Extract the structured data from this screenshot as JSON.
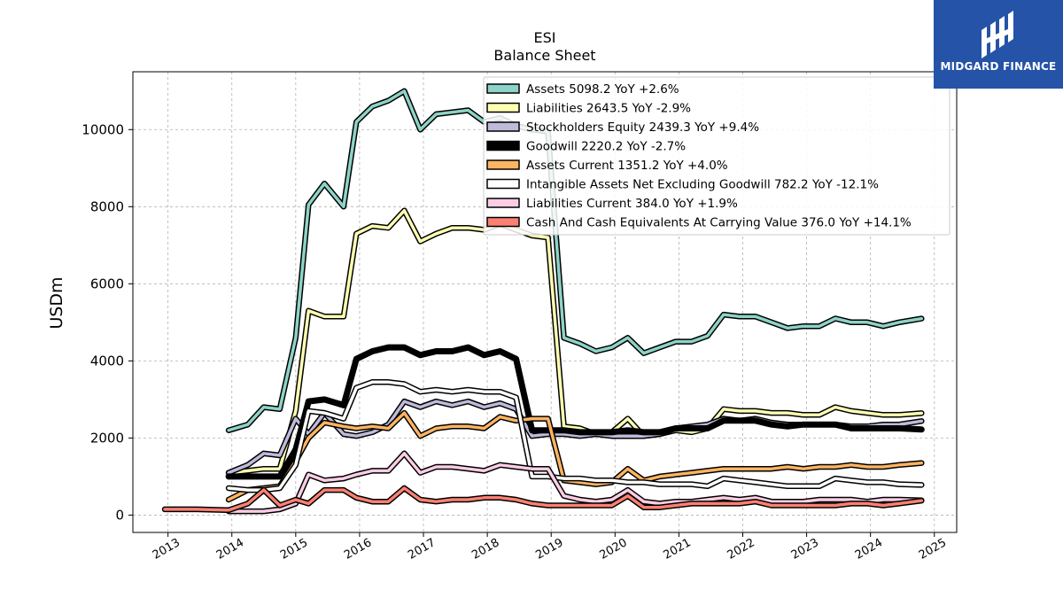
{
  "logo": {
    "text": "MIDGARD FINANCE",
    "icon": "midgard-finance-logo-icon",
    "bg_color": "#2453a8"
  },
  "chart_data": {
    "type": "line",
    "title": "ESI",
    "subtitle": "Balance  Sheet",
    "xlabel": "",
    "ylabel": "USDm",
    "xlim": [
      2012.45,
      2025.35
    ],
    "ylim": [
      -450,
      11500
    ],
    "x_ticks": [
      "2013",
      "2014",
      "2015",
      "2016",
      "2017",
      "2018",
      "2019",
      "2020",
      "2021",
      "2022",
      "2023",
      "2024",
      "2025"
    ],
    "y_ticks": [
      "0",
      "2000",
      "4000",
      "6000",
      "8000",
      "10000"
    ],
    "grid": true,
    "legend_position": "top-right",
    "series": [
      {
        "name": "Assets  5098.2 YoY +2.6%",
        "color": "#8dd3c7",
        "lw": 3.5,
        "x": [
          2013.95,
          2014.25,
          2014.5,
          2014.75,
          2015.0,
          2015.2,
          2015.45,
          2015.75,
          2015.95,
          2016.2,
          2016.45,
          2016.7,
          2016.95,
          2017.2,
          2017.45,
          2017.7,
          2017.95,
          2018.2,
          2018.45,
          2018.7,
          2018.95,
          2019.2,
          2019.45,
          2019.7,
          2019.95,
          2020.2,
          2020.45,
          2020.7,
          2020.95,
          2021.2,
          2021.45,
          2021.7,
          2021.95,
          2022.2,
          2022.45,
          2022.7,
          2022.95,
          2023.2,
          2023.45,
          2023.7,
          2023.95,
          2024.2,
          2024.45,
          2024.8
        ],
        "y": [
          2200,
          2350,
          2800,
          2750,
          4600,
          8050,
          8600,
          8000,
          10200,
          10600,
          10750,
          11000,
          10000,
          10400,
          10450,
          10500,
          10200,
          10300,
          10100,
          10000,
          9950,
          4600,
          4450,
          4250,
          4350,
          4600,
          4200,
          4350,
          4500,
          4500,
          4650,
          5200,
          5150,
          5150,
          5000,
          4850,
          4900,
          4900,
          5100,
          5000,
          5000,
          4900,
          5000,
          5098.2
        ]
      },
      {
        "name": "Liabilities  2643.5 YoY -2.9%",
        "color": "#ffffb3",
        "lw": 3.5,
        "x": [
          2013.95,
          2014.25,
          2014.5,
          2014.75,
          2015.0,
          2015.2,
          2015.45,
          2015.75,
          2015.95,
          2016.2,
          2016.45,
          2016.7,
          2016.95,
          2017.2,
          2017.45,
          2017.7,
          2017.95,
          2018.2,
          2018.45,
          2018.7,
          2018.95,
          2019.2,
          2019.45,
          2019.7,
          2019.95,
          2020.2,
          2020.45,
          2020.7,
          2020.95,
          2021.2,
          2021.45,
          2021.7,
          2021.95,
          2022.2,
          2022.45,
          2022.7,
          2022.95,
          2023.2,
          2023.45,
          2023.7,
          2023.95,
          2024.2,
          2024.45,
          2024.8
        ],
        "y": [
          1100,
          1150,
          1200,
          1200,
          2700,
          5300,
          5150,
          5150,
          7300,
          7500,
          7450,
          7900,
          7100,
          7300,
          7450,
          7450,
          7400,
          7550,
          7400,
          7250,
          7200,
          2300,
          2250,
          2100,
          2150,
          2500,
          2050,
          2100,
          2200,
          2150,
          2250,
          2750,
          2700,
          2700,
          2650,
          2650,
          2600,
          2600,
          2800,
          2700,
          2650,
          2600,
          2600,
          2643.5
        ]
      },
      {
        "name": "Stockholders Equity  2439.3 YoY +9.4%",
        "color": "#bebada",
        "lw": 3.5,
        "x": [
          2013.95,
          2014.25,
          2014.5,
          2014.75,
          2015.0,
          2015.2,
          2015.45,
          2015.75,
          2015.95,
          2016.2,
          2016.45,
          2016.7,
          2016.95,
          2017.2,
          2017.45,
          2017.7,
          2017.95,
          2018.2,
          2018.45,
          2018.7,
          2018.95,
          2019.2,
          2019.45,
          2019.7,
          2019.95,
          2020.2,
          2020.45,
          2020.7,
          2020.95,
          2021.2,
          2021.45,
          2021.7,
          2021.95,
          2022.2,
          2022.45,
          2022.7,
          2022.95,
          2023.2,
          2023.45,
          2023.7,
          2023.95,
          2024.2,
          2024.45,
          2024.8
        ],
        "y": [
          1100,
          1300,
          1600,
          1550,
          2500,
          2100,
          2650,
          2100,
          2050,
          2150,
          2350,
          2950,
          2800,
          2950,
          2850,
          2950,
          2800,
          2900,
          2750,
          2050,
          2100,
          2100,
          2050,
          2100,
          2050,
          2050,
          2050,
          2100,
          2250,
          2300,
          2350,
          2500,
          2450,
          2500,
          2400,
          2350,
          2350,
          2350,
          2350,
          2300,
          2300,
          2350,
          2350,
          2439.3
        ]
      },
      {
        "name": "Goodwill  2220.2 YoY -2.7%",
        "color": "#000000",
        "lw": 7,
        "x": [
          2013.95,
          2014.25,
          2014.5,
          2014.75,
          2015.0,
          2015.2,
          2015.45,
          2015.75,
          2015.95,
          2016.2,
          2016.45,
          2016.7,
          2016.95,
          2017.2,
          2017.45,
          2017.7,
          2017.95,
          2018.2,
          2018.45,
          2018.7,
          2018.95,
          2019.2,
          2019.45,
          2019.7,
          2019.95,
          2020.2,
          2020.45,
          2020.7,
          2020.95,
          2021.2,
          2021.45,
          2021.7,
          2021.95,
          2022.2,
          2022.45,
          2022.7,
          2022.95,
          2023.2,
          2023.45,
          2023.7,
          2023.95,
          2024.2,
          2024.45,
          2024.8
        ],
        "y": [
          1000,
          1000,
          1000,
          1000,
          1700,
          2950,
          3000,
          2850,
          4050,
          4250,
          4350,
          4350,
          4150,
          4250,
          4250,
          4350,
          4150,
          4250,
          4050,
          2200,
          2200,
          2200,
          2150,
          2150,
          2150,
          2200,
          2150,
          2150,
          2250,
          2250,
          2250,
          2450,
          2450,
          2450,
          2350,
          2300,
          2350,
          2350,
          2350,
          2250,
          2250,
          2250,
          2250,
          2220.2
        ]
      },
      {
        "name": "Assets Current  1351.2 YoY +4.0%",
        "color": "#fdb462",
        "lw": 3.5,
        "x": [
          2013.95,
          2014.25,
          2014.5,
          2014.75,
          2015.0,
          2015.2,
          2015.45,
          2015.75,
          2015.95,
          2016.2,
          2016.45,
          2016.7,
          2016.95,
          2017.2,
          2017.45,
          2017.7,
          2017.95,
          2018.2,
          2018.45,
          2018.7,
          2018.95,
          2019.2,
          2019.45,
          2019.7,
          2019.95,
          2020.2,
          2020.45,
          2020.7,
          2020.95,
          2021.2,
          2021.45,
          2021.7,
          2021.95,
          2022.2,
          2022.45,
          2022.7,
          2022.95,
          2023.2,
          2023.45,
          2023.7,
          2023.95,
          2024.2,
          2024.45,
          2024.8
        ],
        "y": [
          400,
          650,
          700,
          750,
          1400,
          2000,
          2400,
          2300,
          2250,
          2300,
          2250,
          2650,
          2050,
          2250,
          2300,
          2300,
          2250,
          2550,
          2450,
          2500,
          2500,
          900,
          850,
          800,
          850,
          1200,
          900,
          1000,
          1050,
          1100,
          1150,
          1200,
          1200,
          1200,
          1200,
          1250,
          1200,
          1250,
          1250,
          1300,
          1250,
          1250,
          1300,
          1351.2
        ]
      },
      {
        "name": "Intangible Assets Net Excluding Goodwill  782.2 YoY -12.1%",
        "color": "#ffffff",
        "lw": 3.5,
        "x": [
          2013.95,
          2014.25,
          2014.5,
          2014.75,
          2015.0,
          2015.2,
          2015.45,
          2015.75,
          2015.95,
          2016.2,
          2016.45,
          2016.7,
          2016.95,
          2017.2,
          2017.45,
          2017.7,
          2017.95,
          2018.2,
          2018.45,
          2018.7,
          2018.95,
          2019.2,
          2019.45,
          2019.7,
          2019.95,
          2020.2,
          2020.45,
          2020.7,
          2020.95,
          2021.2,
          2021.45,
          2021.7,
          2021.95,
          2022.2,
          2022.45,
          2022.7,
          2022.95,
          2023.2,
          2023.45,
          2023.7,
          2023.95,
          2024.2,
          2024.45,
          2024.8
        ],
        "y": [
          700,
          650,
          650,
          700,
          1300,
          2700,
          2650,
          2500,
          3300,
          3450,
          3450,
          3400,
          3200,
          3250,
          3200,
          3250,
          3200,
          3200,
          3050,
          1000,
          1000,
          950,
          950,
          900,
          900,
          850,
          850,
          800,
          800,
          800,
          750,
          950,
          900,
          850,
          800,
          750,
          750,
          750,
          950,
          900,
          850,
          850,
          800,
          782.2
        ]
      },
      {
        "name": "Liabilities Current  384.0 YoY +1.9%",
        "color": "#fccde5",
        "lw": 3.5,
        "x": [
          2013.95,
          2014.25,
          2014.5,
          2014.75,
          2015.0,
          2015.2,
          2015.45,
          2015.75,
          2015.95,
          2016.2,
          2016.45,
          2016.7,
          2016.95,
          2017.2,
          2017.45,
          2017.7,
          2017.95,
          2018.2,
          2018.45,
          2018.7,
          2018.95,
          2019.2,
          2019.45,
          2019.7,
          2019.95,
          2020.2,
          2020.45,
          2020.7,
          2020.95,
          2021.2,
          2021.45,
          2021.7,
          2021.95,
          2022.2,
          2022.45,
          2022.7,
          2022.95,
          2023.2,
          2023.45,
          2023.7,
          2023.95,
          2024.2,
          2024.45,
          2024.8
        ],
        "y": [
          100,
          100,
          100,
          150,
          300,
          1050,
          900,
          950,
          1050,
          1150,
          1150,
          1600,
          1100,
          1250,
          1250,
          1200,
          1150,
          1300,
          1250,
          1200,
          1200,
          500,
          400,
          350,
          400,
          650,
          350,
          300,
          350,
          350,
          400,
          450,
          400,
          450,
          350,
          350,
          350,
          400,
          400,
          400,
          350,
          400,
          400,
          384.0
        ]
      },
      {
        "name": "Cash And Cash Equivalents At Carrying Value  376.0 YoY +14.1%",
        "color": "#fb8072",
        "lw": 3.5,
        "x": [
          2012.95,
          2013.45,
          2013.95,
          2014.25,
          2014.5,
          2014.75,
          2015.0,
          2015.2,
          2015.45,
          2015.75,
          2015.95,
          2016.2,
          2016.45,
          2016.7,
          2016.95,
          2017.2,
          2017.45,
          2017.7,
          2017.95,
          2018.2,
          2018.45,
          2018.7,
          2018.95,
          2019.2,
          2019.45,
          2019.7,
          2019.95,
          2020.2,
          2020.45,
          2020.7,
          2020.95,
          2021.2,
          2021.45,
          2021.7,
          2021.95,
          2022.2,
          2022.45,
          2022.7,
          2022.95,
          2023.2,
          2023.45,
          2023.7,
          2023.95,
          2024.2,
          2024.45,
          2024.8
        ],
        "y": [
          150,
          150,
          130,
          300,
          650,
          250,
          400,
          300,
          650,
          650,
          450,
          350,
          350,
          700,
          400,
          350,
          400,
          400,
          450,
          450,
          400,
          300,
          250,
          250,
          250,
          250,
          250,
          500,
          200,
          200,
          250,
          300,
          300,
          300,
          300,
          350,
          250,
          250,
          250,
          250,
          250,
          300,
          300,
          250,
          300,
          376.0
        ]
      }
    ]
  }
}
